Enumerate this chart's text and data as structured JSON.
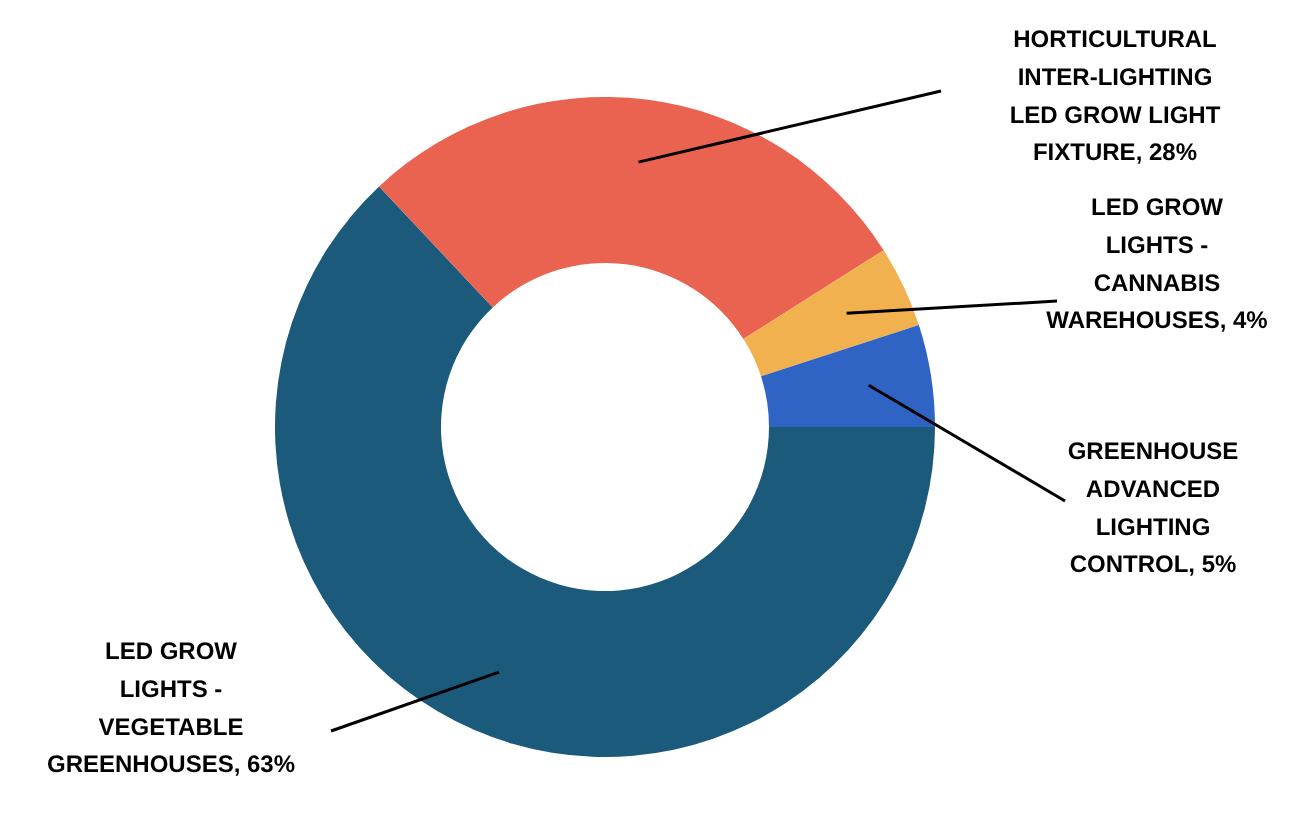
{
  "chart_data": {
    "type": "donut",
    "categories": [
      "LED GROW LIGHTS - VEGETABLE GREENHOUSES",
      "HORTICULTURAL INTER-LIGHTING LED GROW LIGHT FIXTURE",
      "LED GROW LIGHTS - CANNABIS WAREHOUSES",
      "GREENHOUSE ADVANCED LIGHTING CONTROL"
    ],
    "values": [
      63,
      28,
      4,
      5
    ],
    "value_labels": [
      "63%",
      "28%",
      "4%",
      "5%"
    ],
    "colors": [
      "#1b5a7a",
      "#e96350",
      "#f2b14f",
      "#2f64c5"
    ]
  }
}
